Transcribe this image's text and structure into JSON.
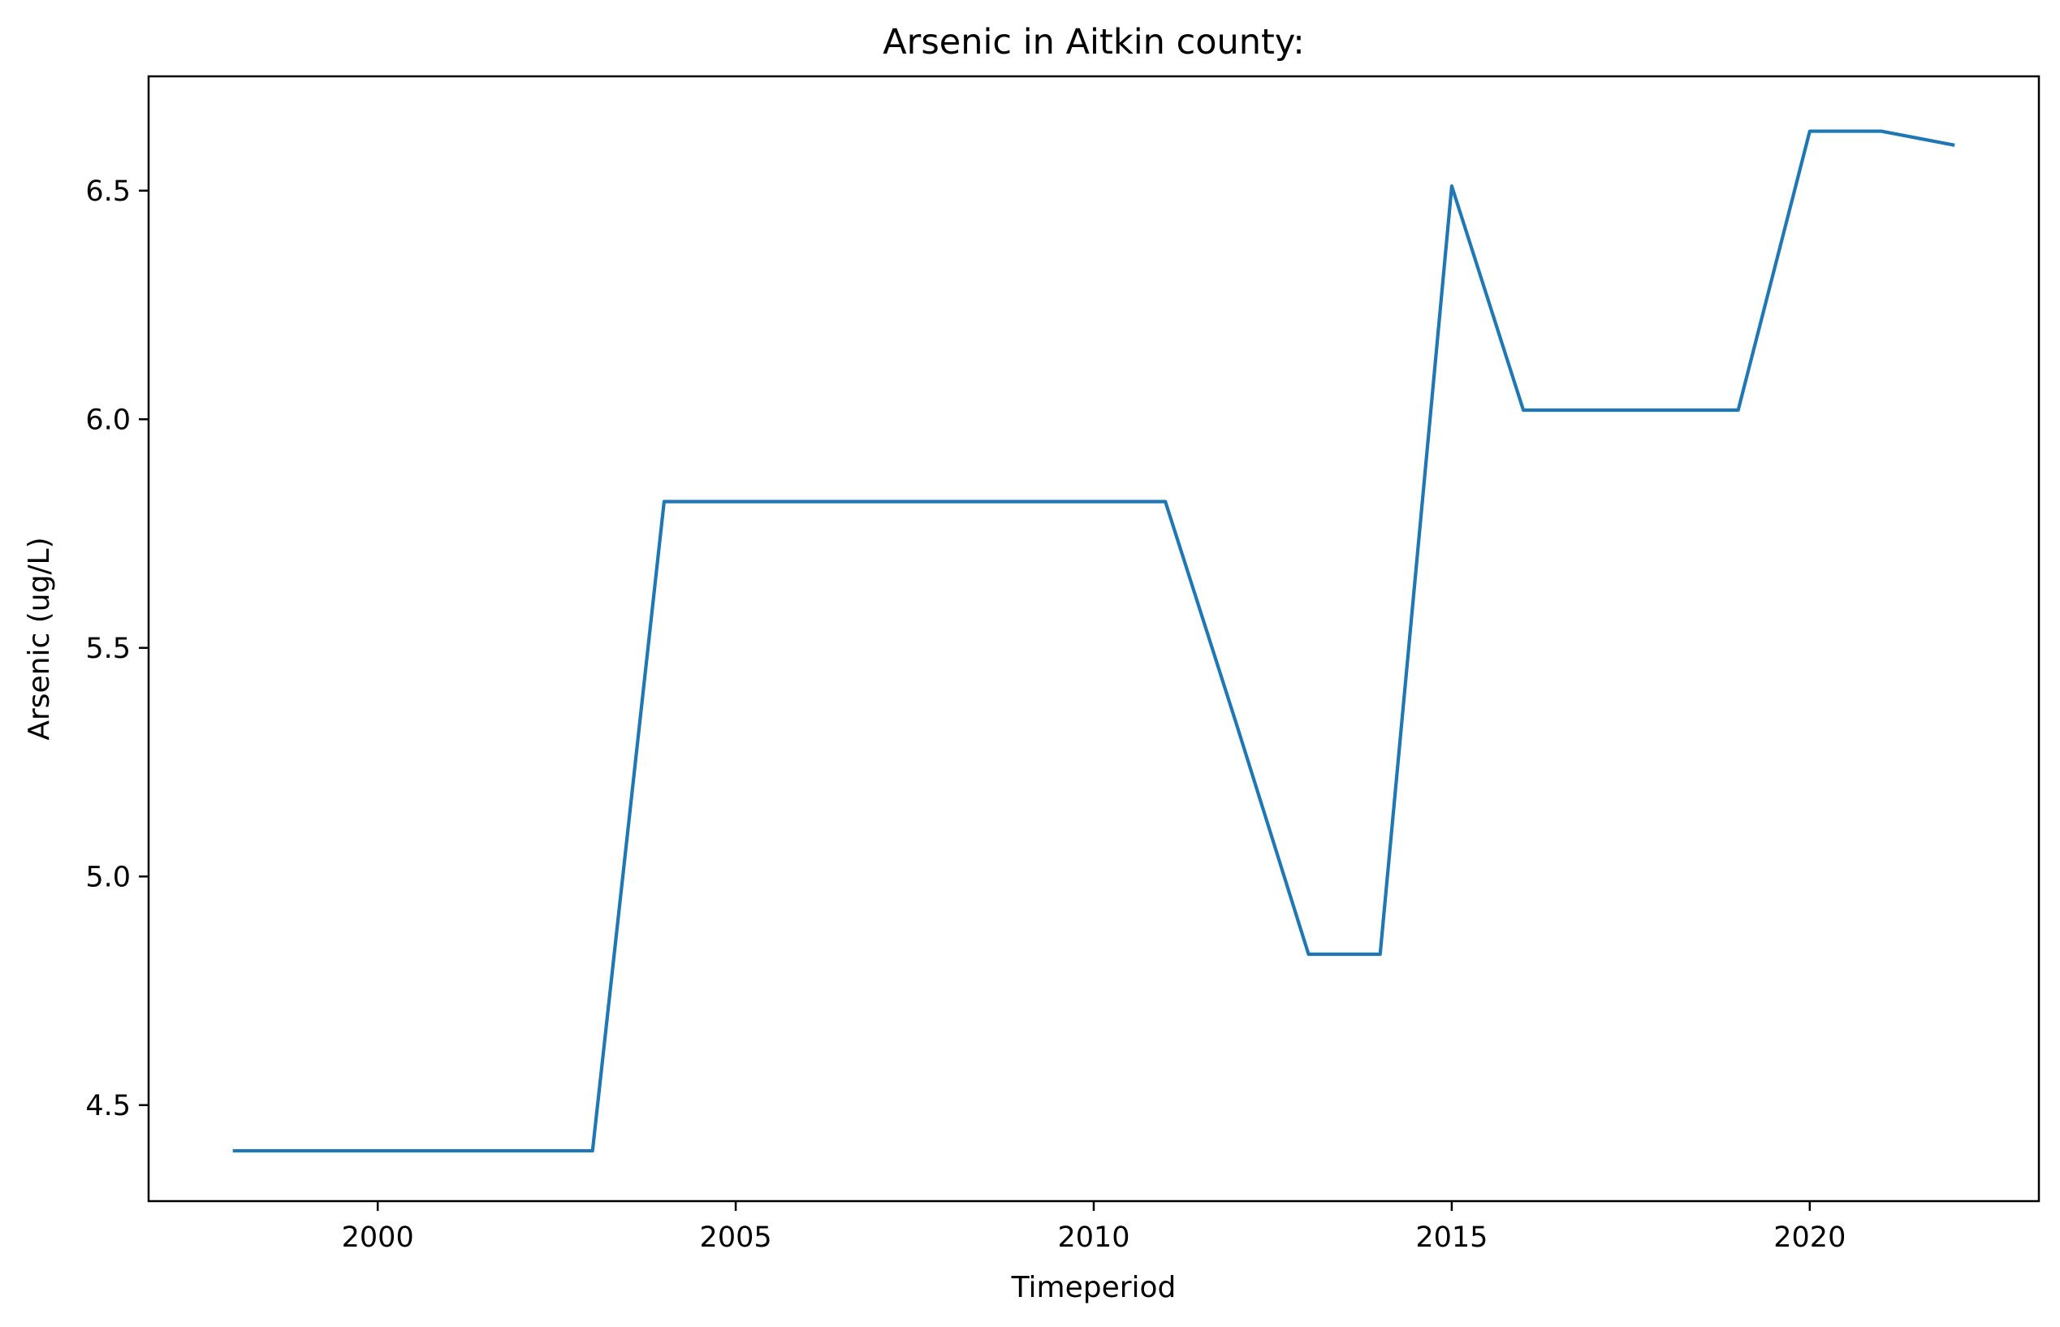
{
  "chart_data": {
    "type": "line",
    "title": "Arsenic in Aitkin county:",
    "xlabel": "Timeperiod",
    "ylabel": "Arsenic (ug/L)",
    "xlim": [
      1996.8,
      2023.2
    ],
    "ylim": [
      4.29,
      6.75
    ],
    "x_ticks": [
      2000,
      2005,
      2010,
      2015,
      2020
    ],
    "x_tick_labels": [
      "2000",
      "2005",
      "2010",
      "2015",
      "2020"
    ],
    "y_ticks": [
      4.5,
      5.0,
      5.5,
      6.0,
      6.5
    ],
    "y_tick_labels": [
      "4.5",
      "5.0",
      "5.5",
      "6.0",
      "6.5"
    ],
    "grid": false,
    "legend": "none",
    "series": [
      {
        "color": "#1f77b4",
        "x": [
          1998,
          1999,
          2000,
          2001,
          2002,
          2003,
          2004,
          2005,
          2006,
          2007,
          2008,
          2009,
          2010,
          2011,
          2012,
          2013,
          2014,
          2015,
          2016,
          2017,
          2018,
          2019,
          2020,
          2021,
          2022
        ],
        "y": [
          4.4,
          4.4,
          4.4,
          4.4,
          4.4,
          4.4,
          5.82,
          5.82,
          5.82,
          5.82,
          5.82,
          5.82,
          5.82,
          5.82,
          5.33,
          4.83,
          4.83,
          6.51,
          6.02,
          6.02,
          6.02,
          6.02,
          6.63,
          6.63,
          6.6
        ]
      }
    ]
  }
}
